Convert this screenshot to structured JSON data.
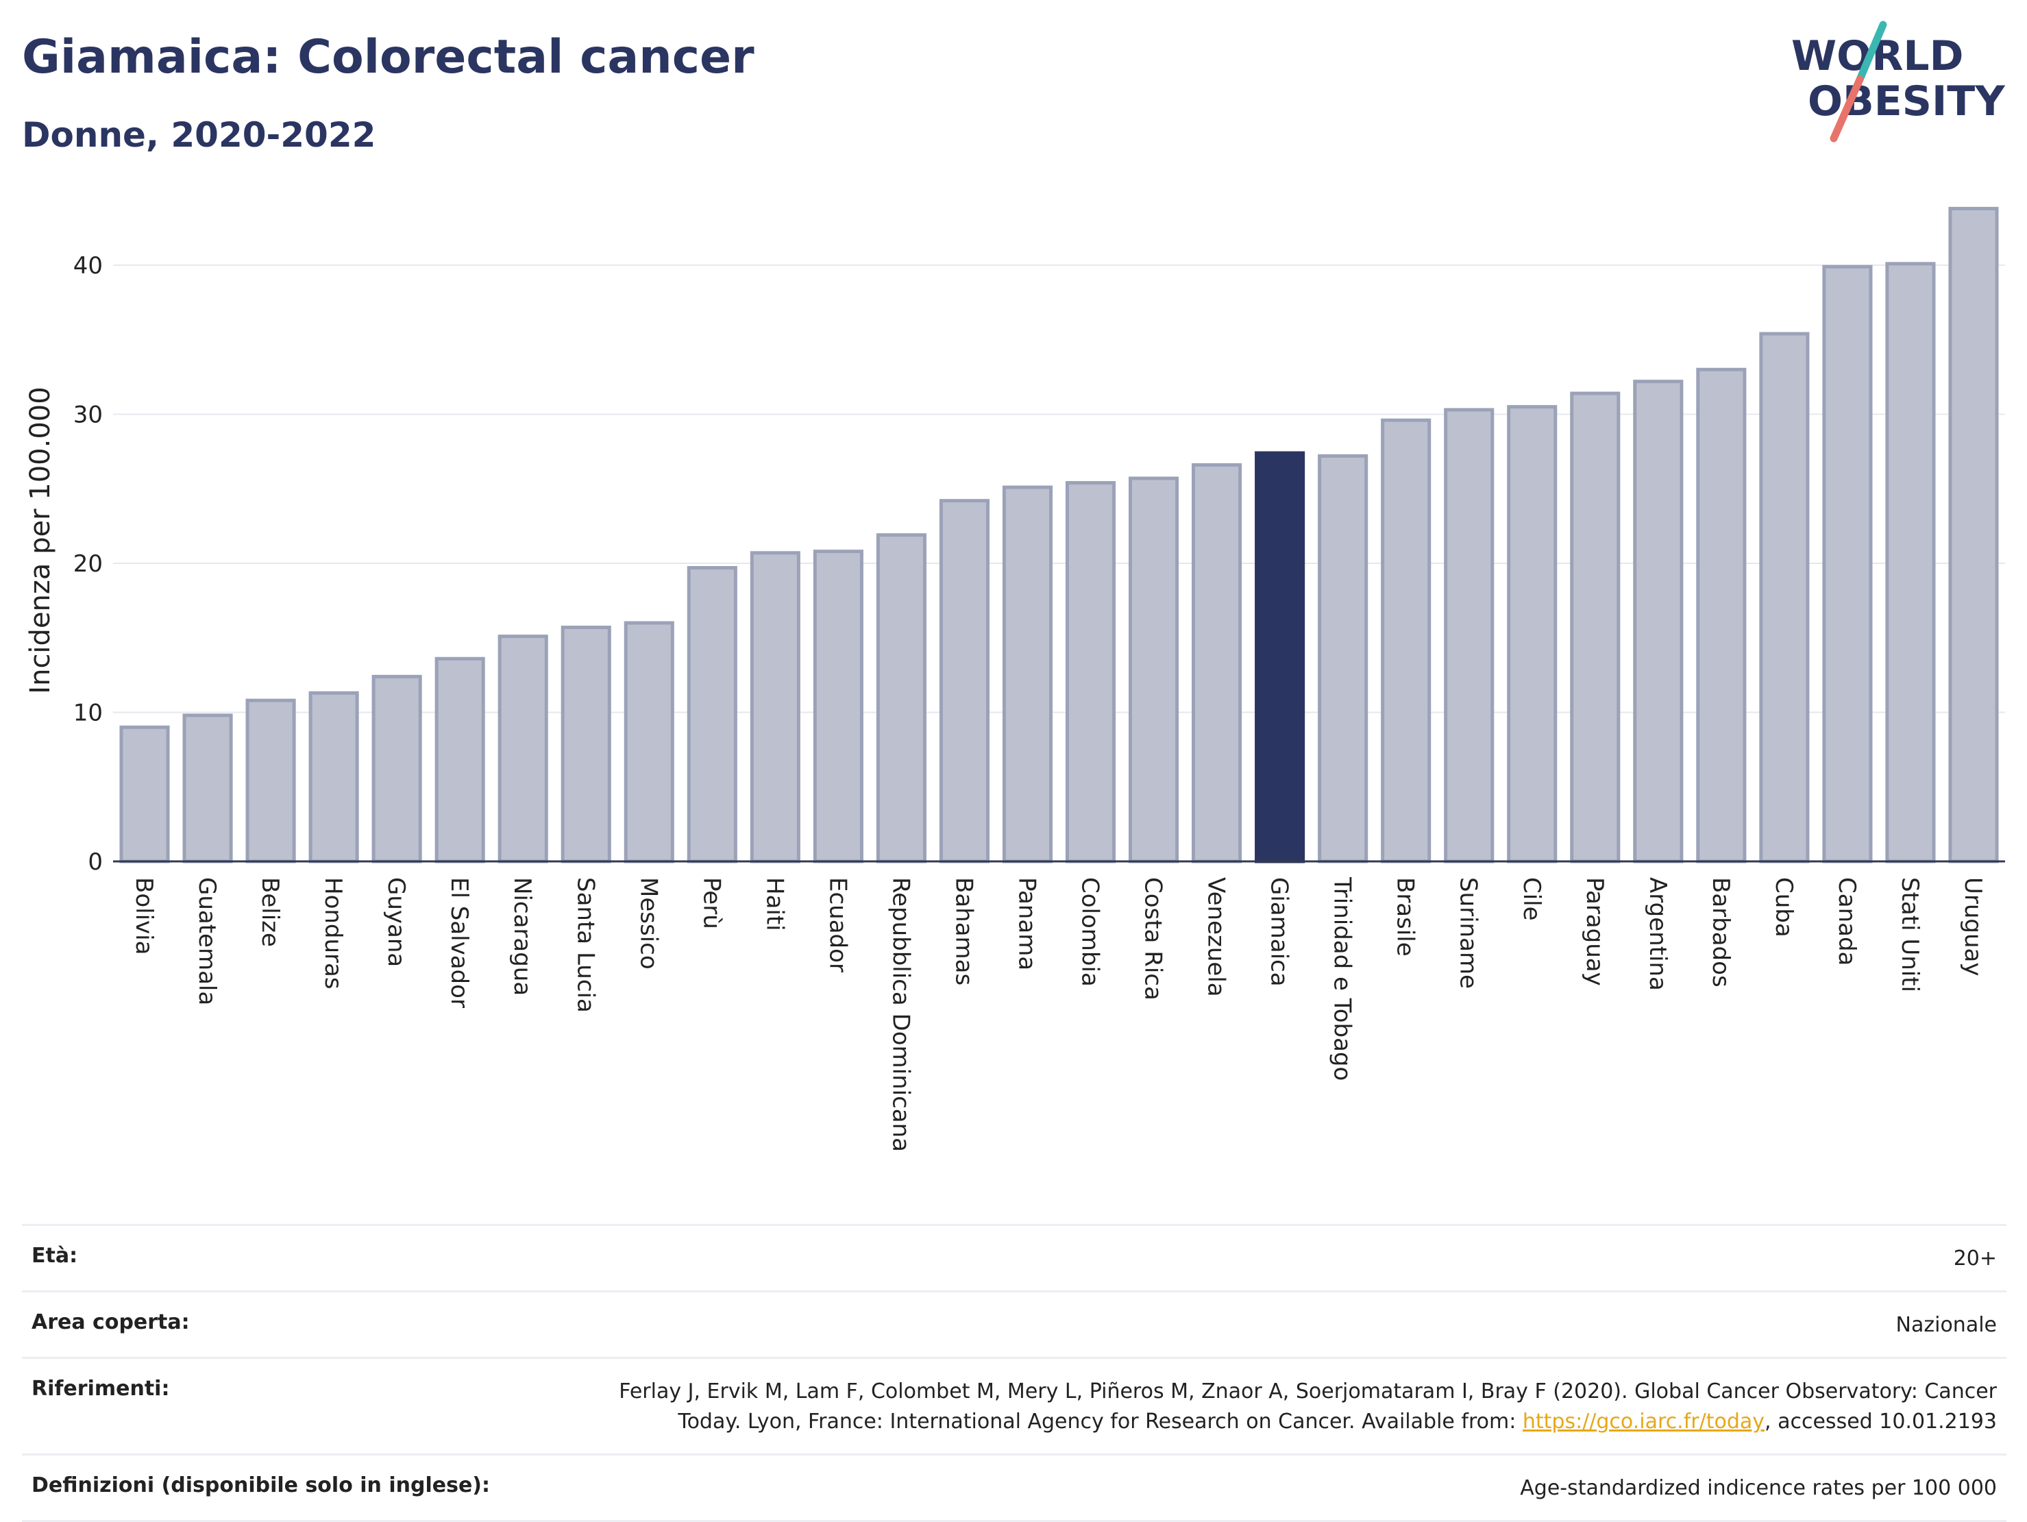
{
  "header": {
    "title": "Giamaica: Colorectal cancer",
    "subtitle": "Donne, 2020-2022"
  },
  "logo": {
    "line1": "WORLD",
    "line2": "OBESITY",
    "colors": {
      "text": "#2b3561",
      "teal": "#3ab7b0",
      "coral": "#e8736a"
    }
  },
  "chart_data": {
    "type": "bar",
    "ylabel": "Incidenza per 100.000",
    "xlabel": "",
    "ylim": [
      0,
      44
    ],
    "yticks": [
      0,
      10,
      20,
      30,
      40
    ],
    "grid": true,
    "highlight": "Giamaica",
    "colors": {
      "bar_fill": "#bdc1cf",
      "bar_stroke": "#9ba2b8",
      "highlight_fill": "#2b3561",
      "grid": "#e6e8ee",
      "axis": "#333a50"
    },
    "categories": [
      "Bolivia",
      "Guatemala",
      "Belize",
      "Honduras",
      "Guyana",
      "El Salvador",
      "Nicaragua",
      "Santa Lucia",
      "Messico",
      "Perù",
      "Haiti",
      "Ecuador",
      "Repubblica Dominicana",
      "Bahamas",
      "Panama",
      "Colombia",
      "Costa Rica",
      "Venezuela",
      "Giamaica",
      "Trinidad e Tobago",
      "Brasile",
      "Suriname",
      "Cile",
      "Paraguay",
      "Argentina",
      "Barbados",
      "Cuba",
      "Canada",
      "Stati Uniti",
      "Uruguay"
    ],
    "values": [
      9.0,
      9.8,
      10.8,
      11.3,
      12.4,
      13.6,
      15.1,
      15.7,
      16.0,
      19.7,
      20.7,
      20.8,
      21.9,
      24.2,
      25.1,
      25.4,
      25.7,
      26.6,
      27.4,
      27.2,
      29.6,
      30.3,
      30.5,
      31.4,
      32.2,
      33.0,
      35.4,
      39.9,
      40.1,
      43.8
    ]
  },
  "info": {
    "rows": [
      {
        "label": "Età:",
        "value": "20+"
      },
      {
        "label": "Area coperta:",
        "value": "Nazionale"
      },
      {
        "label": "Riferimenti:",
        "value_line1": "Ferlay J, Ervik M, Lam F, Colombet M, Mery L, Piñeros M, Znaor A, Soerjomataram I, Bray F (2020). Global Cancer Observatory: Cancer",
        "value_line2_pre": "Today. Lyon, France: International Agency for Research on Cancer. Available from: ",
        "link": "https://gco.iarc.fr/today",
        "value_line2_post": ", accessed 10.01.2193"
      },
      {
        "label": "Definizioni (disponibile solo in inglese):",
        "value": "Age-standardized indicence rates per 100 000"
      }
    ]
  }
}
